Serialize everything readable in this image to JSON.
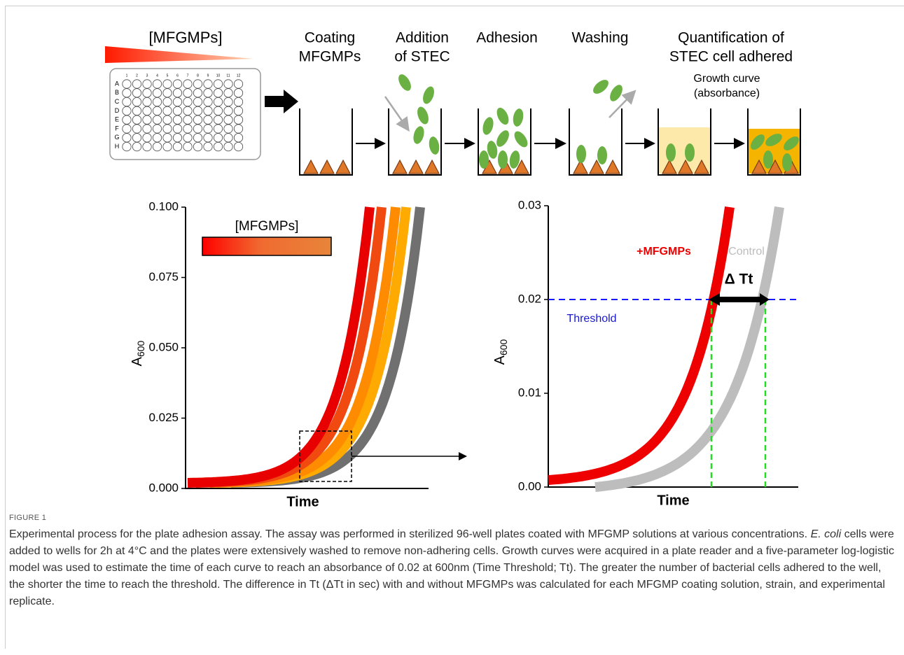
{
  "figure": {
    "top_label": "[MFGMPs]",
    "plate": {
      "rows": [
        "A",
        "B",
        "C",
        "D",
        "E",
        "F",
        "G",
        "H"
      ],
      "columns": [
        "1",
        "2",
        "3",
        "4",
        "5",
        "6",
        "7",
        "8",
        "9",
        "10",
        "11",
        "12"
      ]
    },
    "steps": [
      {
        "lines": [
          "Coating",
          "MFGMPs"
        ]
      },
      {
        "lines": [
          "Addition",
          "of STEC"
        ]
      },
      {
        "lines": [
          "Adhesion"
        ]
      },
      {
        "lines": [
          "Washing"
        ]
      },
      {
        "lines": [
          "Quantification of",
          "STEC cell adhered"
        ],
        "sub_lines": [
          "Growth curve",
          "(absorbance)"
        ]
      }
    ],
    "left_panel": {
      "yticks": [
        {
          "value": 0.1,
          "label": "0.100"
        },
        {
          "value": 0.075,
          "label": "0.075"
        },
        {
          "value": 0.05,
          "label": "0.050"
        },
        {
          "value": 0.025,
          "label": "0.025"
        },
        {
          "value": 0,
          "label": "0.000"
        }
      ],
      "y_label": {
        "main": "A",
        "sub": "600"
      },
      "x_label": "Time",
      "legend": "[MFGMPs]"
    },
    "right_panel": {
      "yticks": [
        {
          "value": 0.03,
          "label": "0.03"
        },
        {
          "value": 0.02,
          "label": "0.02"
        },
        {
          "value": 0.01,
          "label": "0.01"
        },
        {
          "value": 0,
          "label": "0.00"
        }
      ],
      "y_label": {
        "main": "A",
        "sub": "600"
      },
      "x_label": "Time",
      "treated": "+MFGMPs",
      "control": "Control",
      "delta": "Δ Tt",
      "threshold_label": "Threshold"
    }
  },
  "caption": {
    "label": "FIGURE 1",
    "parts": [
      "Experimental process for the plate adhesion assay. The assay was performed in sterilized 96-well plates coated with MFGMP solutions at various concentrations. ",
      "E. coli",
      " cells were added to wells for 2h at 4°C and the plates were extensively washed to remove non-adhering cells. Growth curves were acquired in a plate reader and a five-parameter log-logistic model was used to estimate the time of each curve to reach an absorbance of 0.02 at 600nm (Time Threshold; Tt). The greater the number of bacterial cells adhered to the well, the shorter the time to reach the threshold. The difference in Tt (ΔTt in sec) with and without MFGMPs was calculated for each MFGMP coating solution, strain, and experimental replicate."
    ]
  }
}
